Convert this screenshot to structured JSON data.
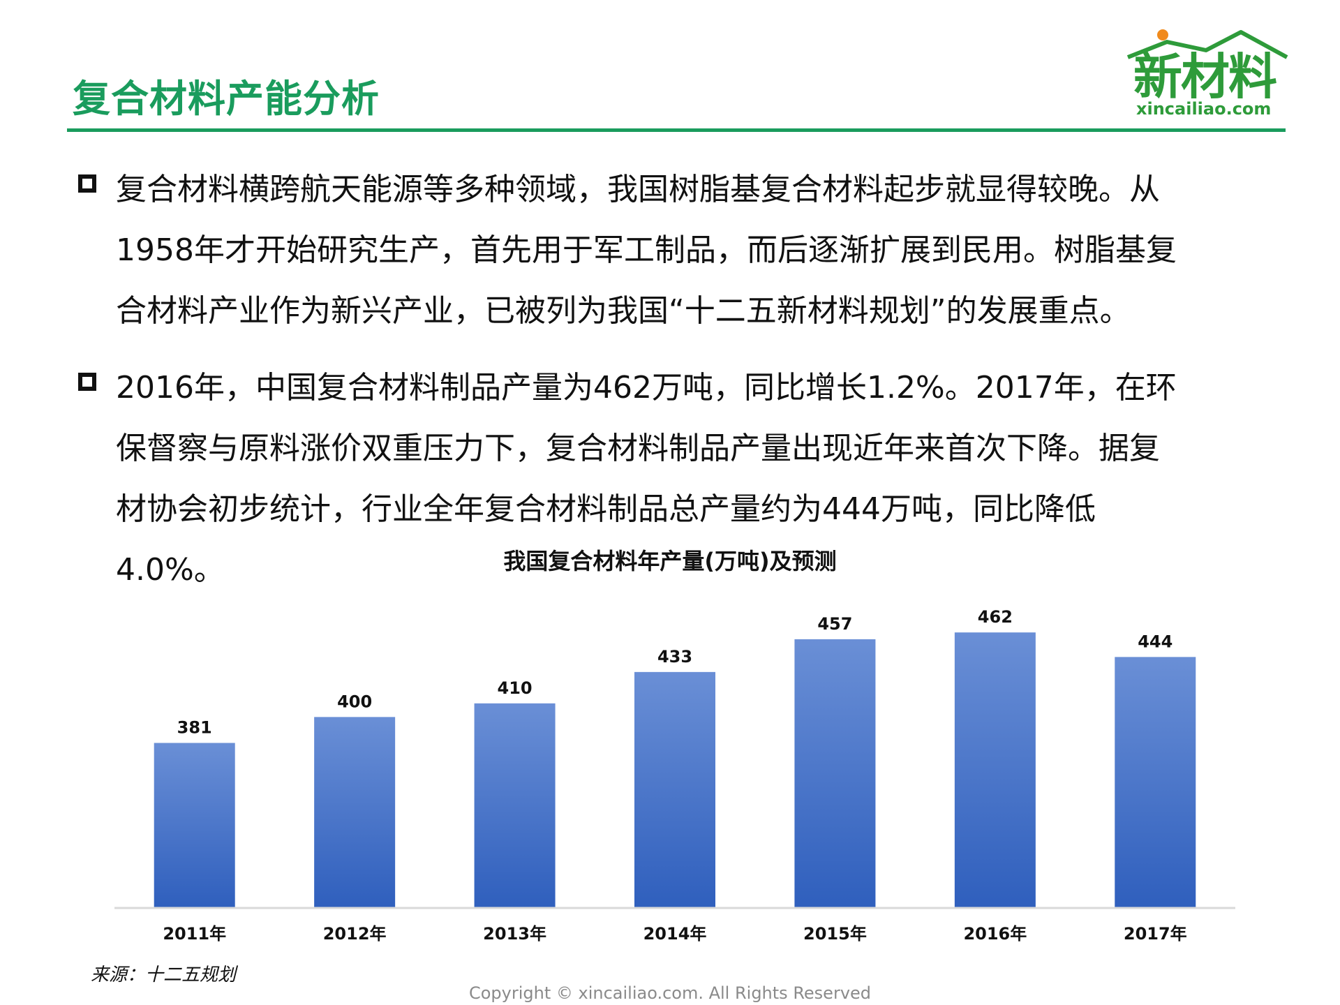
{
  "slide": {
    "title": "复合材料产能分析",
    "logo_text": "新材料",
    "logo_domain": "xincailiao.com",
    "bullets": [
      [
        "复合材料横跨航天能源等多种领域，我国树脂基复合材料起步就显得较晚。从",
        "1958年才开始研究生产，首先用于军工制品，而后逐渐扩展到民用。树脂基复",
        "合材料产业作为新兴产业，已被列为我国“十二五新材料规划”的发展重点。"
      ],
      [
        "2016年，中国复合材料制品产量为462万吨，同比增长1.2%。2017年，在环",
        "保督察与原料涨价双重压力下，复合材料制品产量出现近年来首次下降。据复",
        "材协会初步统计，行业全年复合材料制品总产量约为444万吨，同比降低",
        "4.0%。"
      ]
    ],
    "source": "来源：十二五规划",
    "copyright": "Copyright © xincailiao.com. All Rights Reserved"
  },
  "colors": {
    "accent": "#1a9c5d",
    "logo_green": "#2e9b3a",
    "logo_dot": "#f08a1c",
    "bar_top": "#6a8fd6",
    "bar_bottom": "#2f5fbd",
    "axis": "#d9d9d9"
  },
  "chart_data": {
    "type": "bar",
    "title": "我国复合材料年产量(万吨)及预测",
    "categories": [
      "2011年",
      "2012年",
      "2013年",
      "2014年",
      "2015年",
      "2016年",
      "2017年"
    ],
    "values": [
      381,
      400,
      410,
      433,
      457,
      462,
      444
    ],
    "data_labels": [
      "381",
      "400",
      "410",
      "433",
      "457",
      "462",
      "444"
    ],
    "ylim": [
      260,
      480
    ],
    "grid": false,
    "legend": false
  }
}
